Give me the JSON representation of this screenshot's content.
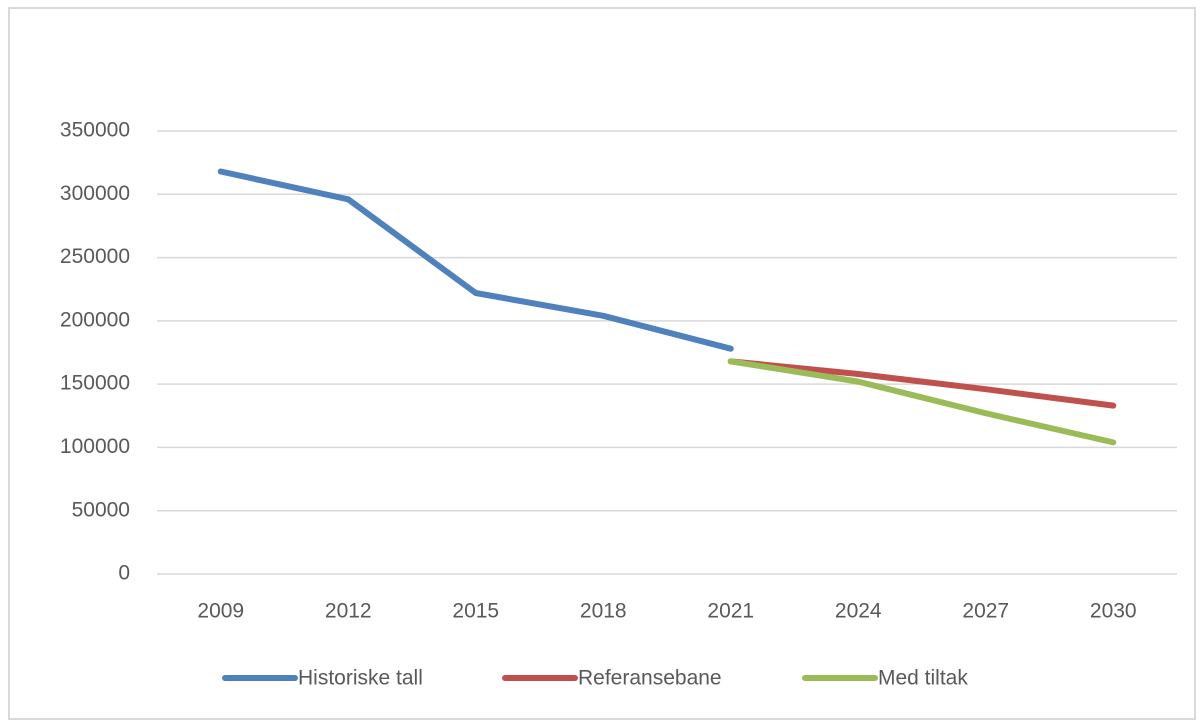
{
  "chart_data": {
    "type": "line",
    "categories": [
      "2009",
      "2012",
      "2015",
      "2018",
      "2021",
      "2024",
      "2027",
      "2030"
    ],
    "series": [
      {
        "name": "Historiske tall",
        "color": "#4f81bd",
        "values": [
          318000,
          296000,
          222000,
          204000,
          178000,
          null,
          null,
          null
        ]
      },
      {
        "name": "Referansebane",
        "color": "#c0504d",
        "values": [
          null,
          null,
          null,
          null,
          168000,
          158000,
          146000,
          133000
        ]
      },
      {
        "name": "Med tiltak",
        "color": "#9bbb59",
        "values": [
          null,
          null,
          null,
          null,
          168000,
          152000,
          127000,
          104000
        ]
      }
    ],
    "ylim": [
      0,
      350000
    ],
    "yticks": [
      0,
      50000,
      100000,
      150000,
      200000,
      250000,
      300000,
      350000
    ],
    "grid": true,
    "legend": "bottom"
  }
}
